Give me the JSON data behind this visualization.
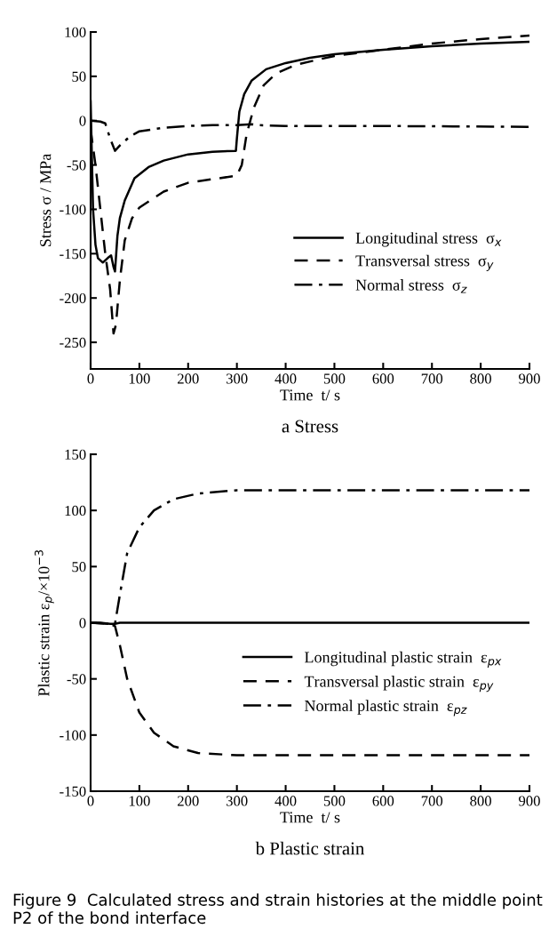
{
  "chart_data": [
    {
      "type": "line",
      "title": "a Stress",
      "xlabel": "Time  t/ s",
      "ylabel": "Stress σ / MPa",
      "xlim": [
        0,
        900
      ],
      "xticks": [
        0,
        100,
        200,
        300,
        400,
        500,
        600,
        700,
        800,
        900
      ],
      "ylim": [
        -280,
        100
      ],
      "yticks": [
        -250,
        -200,
        -150,
        -100,
        -50,
        0,
        50,
        100
      ],
      "legend": "lower right",
      "grid": false,
      "series": [
        {
          "name": "Longitudinal stress  σ$_{x}$",
          "color": "#000000",
          "line_style": "solid",
          "x": [
            0,
            5,
            10,
            15,
            25,
            35,
            42,
            47,
            50,
            55,
            60,
            70,
            90,
            120,
            150,
            200,
            250,
            298,
            300,
            305,
            315,
            330,
            360,
            400,
            450,
            500,
            600,
            700,
            800,
            900
          ],
          "values": [
            22,
            -100,
            -140,
            -155,
            -160,
            -155,
            -152,
            -165,
            -170,
            -130,
            -110,
            -90,
            -65,
            -52,
            -45,
            -38,
            -35,
            -34,
            -20,
            10,
            30,
            45,
            58,
            65,
            71,
            75,
            80,
            84,
            87,
            89
          ]
        },
        {
          "name": "Transversal stress  σ$_{y}$",
          "color": "#000000",
          "line_style": "dashed",
          "x": [
            0,
            10,
            20,
            30,
            40,
            47,
            52,
            60,
            70,
            85,
            100,
            150,
            200,
            250,
            300,
            310,
            320,
            335,
            355,
            380,
            420,
            500,
            600,
            700,
            800,
            900
          ],
          "values": [
            -10,
            -50,
            -100,
            -150,
            -190,
            -240,
            -230,
            -180,
            -135,
            -110,
            -98,
            -80,
            -70,
            -66,
            -62,
            -50,
            -15,
            15,
            40,
            53,
            63,
            73,
            80,
            87,
            92,
            96
          ]
        },
        {
          "name": "Normal stress  σ$_{z}$",
          "color": "#000000",
          "line_style": "dashdot",
          "x": [
            0,
            20,
            30,
            40,
            50,
            60,
            80,
            100,
            150,
            200,
            250,
            300,
            330,
            340,
            400,
            600,
            900
          ],
          "values": [
            0,
            -1,
            -3,
            -20,
            -34,
            -28,
            -18,
            -12,
            -8,
            -6,
            -5,
            -5,
            -4,
            -5,
            -6,
            -6,
            -7
          ]
        }
      ]
    },
    {
      "type": "line",
      "title": "b Plastic strain",
      "xlabel": "Time  t/ s",
      "ylabel": "Plastic strain ε$_{p}$/×10$^{−3}$",
      "xlim": [
        0,
        900
      ],
      "xticks": [
        0,
        100,
        200,
        300,
        400,
        500,
        600,
        700,
        800,
        900
      ],
      "ylim": [
        -150,
        150
      ],
      "yticks": [
        -150,
        -100,
        -50,
        0,
        50,
        100,
        150
      ],
      "legend": "lower right",
      "grid": false,
      "annotations": [
        "Figure 9  Calculated stress and strain histories at the middle point P2 of the bond interface"
      ],
      "series": [
        {
          "name": "Longitudinal plastic strain  ε$_{px}$",
          "color": "#000000",
          "line_style": "solid",
          "x": [
            0,
            20,
            40,
            50,
            60,
            100,
            300,
            900
          ],
          "values": [
            0,
            0,
            -1,
            -1,
            0,
            0,
            0,
            0
          ]
        },
        {
          "name": "Transversal plastic strain  ε$_{py}$",
          "color": "#000000",
          "line_style": "dashed",
          "x": [
            0,
            40,
            50,
            60,
            75,
            100,
            130,
            170,
            220,
            300,
            900
          ],
          "values": [
            0,
            -1,
            -3,
            -20,
            -50,
            -80,
            -98,
            -110,
            -116,
            -118,
            -118
          ]
        },
        {
          "name": "Normal plastic strain  ε$_{pz}$",
          "color": "#000000",
          "line_style": "dashdot",
          "x": [
            0,
            40,
            50,
            60,
            75,
            100,
            130,
            170,
            220,
            300,
            900
          ],
          "values": [
            0,
            -1,
            -1,
            25,
            62,
            85,
            100,
            110,
            115,
            118,
            118
          ]
        }
      ]
    }
  ]
}
